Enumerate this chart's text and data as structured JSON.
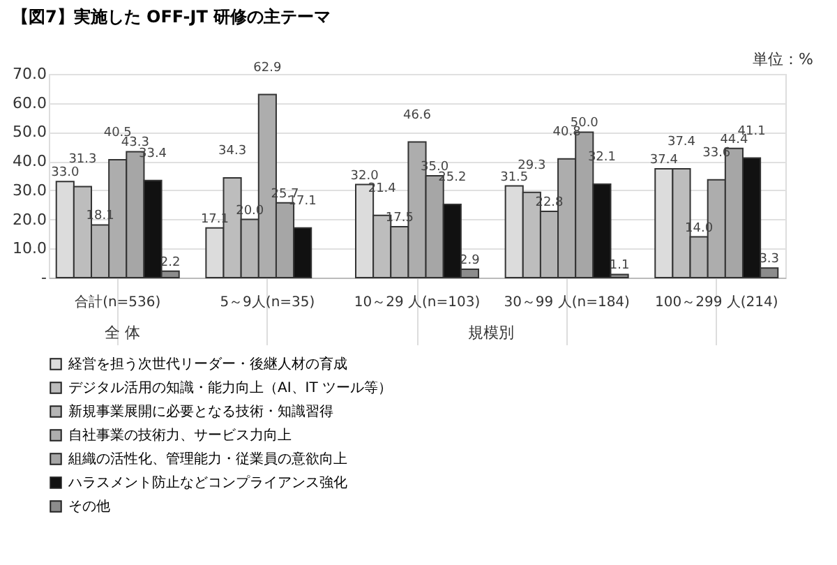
{
  "chart_data": {
    "type": "bar",
    "title": "【図7】実施した OFF-JT 研修の主テーマ",
    "ylabel": "単位：%",
    "categories": [
      "合計(n=536)",
      "5～9人(n=35)",
      "10～29 人(n=103)",
      "30～99 人(n=184)",
      "100～299 人(214)"
    ],
    "annotations": [
      "全 体",
      "規模別"
    ],
    "series": [
      {
        "name": "経営を担う次世代リーダー・後継人材の育成",
        "color": "#dcdcdc",
        "values": [
          33.0,
          17.1,
          32.0,
          31.5,
          37.4
        ],
        "value_labels": [
          "33.0",
          "17.1",
          "32.0",
          "31.5",
          "37.4"
        ]
      },
      {
        "name": "デジタル活用の知識・能力向上（AI、IT ツール等）",
        "color": "#bdbdbd",
        "values": [
          31.3,
          34.3,
          21.4,
          29.3,
          37.4
        ],
        "value_labels": [
          "31.3",
          "34.3",
          "21.4",
          "29.3",
          "37.4"
        ]
      },
      {
        "name": "新規事業展開に必要となる技術・知識習得",
        "color": "#b5b5b5",
        "values": [
          18.1,
          20.0,
          17.5,
          22.8,
          14.0
        ],
        "value_labels": [
          "18.1",
          "20.0",
          "17.5",
          "22.8",
          "14.0"
        ]
      },
      {
        "name": "自社事業の技術力、サービス力向上",
        "color": "#adadad",
        "values": [
          40.5,
          62.9,
          46.6,
          40.8,
          33.6
        ],
        "value_labels": [
          "40.5",
          "62.9",
          "46.6",
          "40.8",
          "33.6"
        ]
      },
      {
        "name": "組織の活性化、管理能力・従業員の意欲向上",
        "color": "#a6a6a6",
        "values": [
          43.3,
          25.7,
          35.0,
          50.0,
          44.4
        ],
        "value_labels": [
          "43.3",
          "25.7",
          "35.0",
          "50.0",
          "44.4"
        ]
      },
      {
        "name": "ハラスメント防止などコンプライアンス強化",
        "color": "#111111",
        "values": [
          33.4,
          17.1,
          25.2,
          32.1,
          41.1
        ],
        "value_labels": [
          "33.4",
          "17.1",
          "25.2",
          "32.1",
          "41.1"
        ]
      },
      {
        "name": "その他",
        "color": "#8c8c8c",
        "values": [
          2.2,
          null,
          2.9,
          1.1,
          3.3
        ],
        "value_labels": [
          "2.2",
          null,
          "2.9",
          "1.1",
          "3.3"
        ]
      }
    ],
    "ylim": [
      0,
      70
    ],
    "yticks": [
      {
        "value": 0,
        "label": "-"
      },
      {
        "value": 10,
        "label": "10.0"
      },
      {
        "value": 20,
        "label": "20.0"
      },
      {
        "value": 30,
        "label": "30.0"
      },
      {
        "value": 40,
        "label": "40.0"
      },
      {
        "value": 50,
        "label": "50.0"
      },
      {
        "value": 60,
        "label": "60.0"
      },
      {
        "value": 70,
        "label": "70.0"
      }
    ],
    "grid": "y",
    "legend": "bottom"
  }
}
